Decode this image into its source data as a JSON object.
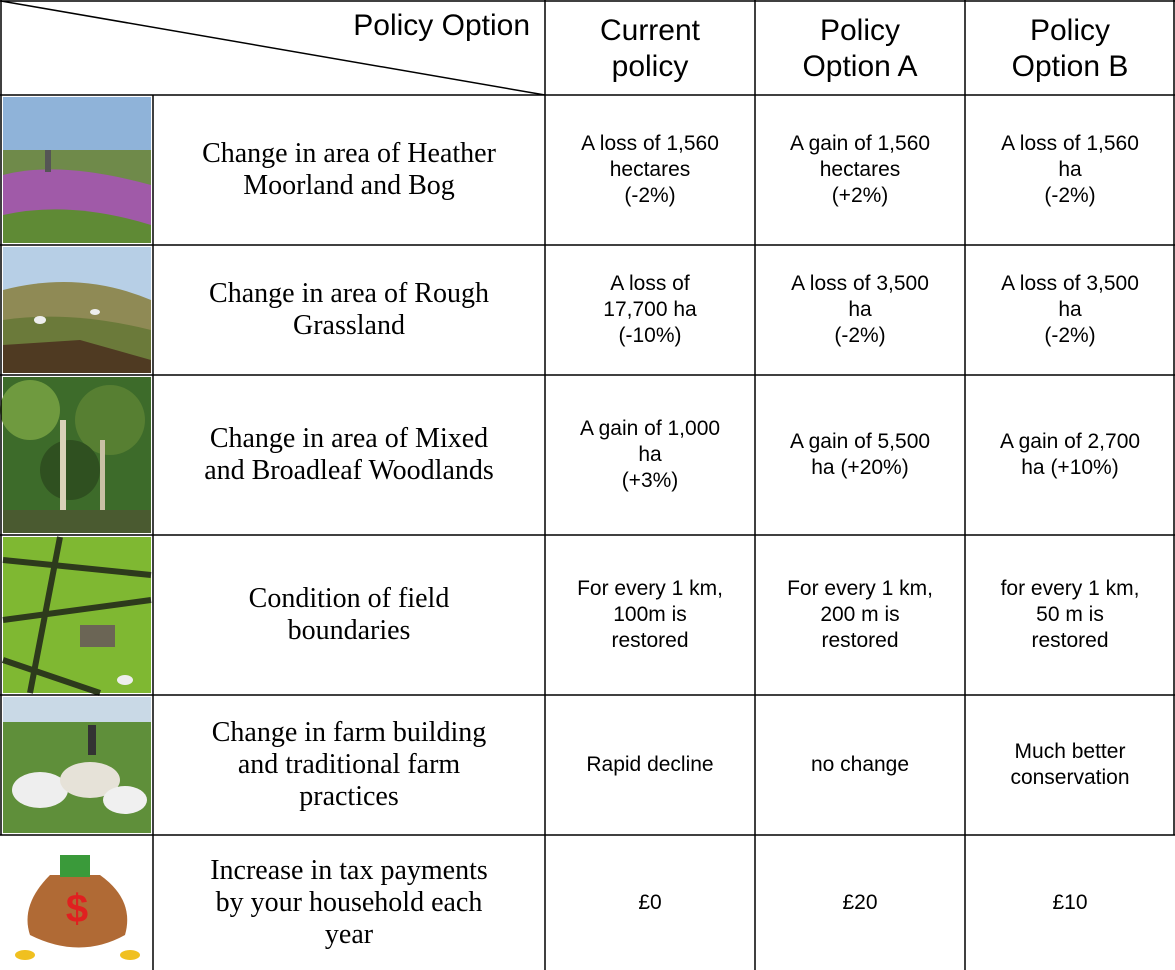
{
  "header": {
    "corner": "Policy Option",
    "columns": [
      [
        "Current",
        "policy"
      ],
      [
        "Policy",
        "Option A"
      ],
      [
        "Policy",
        "Option B"
      ]
    ]
  },
  "table": {
    "rows": [
      {
        "attribute": [
          "Change in area of Heather",
          "Moorland and Bog"
        ],
        "options": [
          [
            "A loss of 1,560",
            "hectares",
            "(-2%)"
          ],
          [
            "A gain of 1,560",
            "hectares",
            "(+2%)"
          ],
          [
            "A loss of 1,560",
            "ha",
            "(-2%)"
          ]
        ]
      },
      {
        "attribute": [
          "Change in area of Rough",
          "Grassland"
        ],
        "options": [
          [
            "A loss of",
            "17,700 ha",
            "(-10%)"
          ],
          [
            "A loss of 3,500",
            "ha",
            "(-2%)"
          ],
          [
            "A loss of 3,500",
            "ha",
            "(-2%)"
          ]
        ]
      },
      {
        "attribute": [
          "Change in area of Mixed",
          "and Broadleaf Woodlands"
        ],
        "options": [
          [
            "A gain of 1,000",
            "ha",
            "(+3%)"
          ],
          [
            "A gain of 5,500",
            "ha (+20%)"
          ],
          [
            "A gain of 2,700",
            "ha (+10%)"
          ]
        ]
      },
      {
        "attribute": [
          "Condition of field",
          "boundaries"
        ],
        "options": [
          [
            "For every 1 km,",
            "100m is",
            "restored"
          ],
          [
            "For every 1 km,",
            "200 m is",
            "restored"
          ],
          [
            "for every 1 km,",
            "50 m is",
            "restored"
          ]
        ]
      },
      {
        "attribute": [
          "Change in farm building",
          "and traditional farm",
          "practices"
        ],
        "options": [
          [
            "Rapid decline"
          ],
          [
            "no change"
          ],
          [
            "Much better",
            "conservation"
          ]
        ]
      },
      {
        "attribute": [
          "Increase in tax payments",
          "by your household each",
          "year"
        ],
        "options": [
          [
            "£0"
          ],
          [
            "£20"
          ],
          [
            "£10"
          ]
        ]
      }
    ]
  }
}
